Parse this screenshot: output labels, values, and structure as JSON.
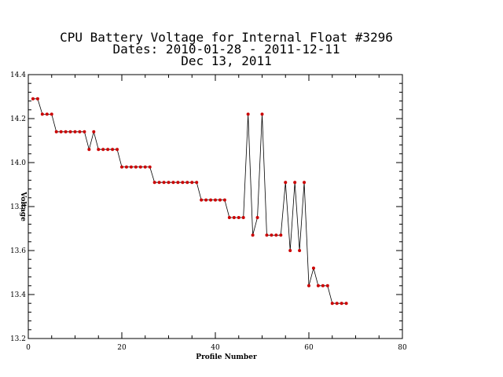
{
  "chart_data": {
    "type": "line",
    "title_lines": [
      "CPU Battery Voltage for Internal Float #3296",
      "Dates:  2010-01-28 -  2011-12-11",
      "Dec 13, 2011"
    ],
    "xlabel": "Profile Number",
    "ylabel": "Voltage",
    "xlim": [
      0,
      80
    ],
    "ylim": [
      13.2,
      14.4
    ],
    "x_ticks": [
      0,
      20,
      40,
      60,
      80
    ],
    "y_ticks": [
      13.2,
      13.4,
      13.6,
      13.8,
      14.0,
      14.2,
      14.4
    ],
    "x_tick_labels": [
      "0",
      "20",
      "40",
      "60",
      "80"
    ],
    "y_tick_labels": [
      "13.2",
      "13.4",
      "13.6",
      "13.8",
      "14.0",
      "14.2",
      "14.4"
    ],
    "grid": false,
    "line_color": "#000000",
    "marker_color": "#cc0000",
    "series": [
      {
        "x": [
          1,
          2,
          3,
          4,
          5,
          6,
          7,
          8,
          9,
          10,
          11,
          12,
          13,
          14,
          15,
          16,
          17,
          18,
          19,
          20,
          21,
          22,
          23,
          24,
          25,
          26,
          27,
          28,
          29,
          30,
          31,
          32,
          33,
          34,
          35,
          36,
          37,
          38,
          39,
          40,
          41,
          42,
          43,
          44,
          45,
          46,
          47,
          48,
          49,
          50,
          51,
          52,
          53,
          54,
          55,
          56,
          57,
          58,
          59,
          60,
          61,
          62,
          63,
          64,
          65,
          66,
          67,
          68
        ],
        "y": [
          14.29,
          14.29,
          14.22,
          14.22,
          14.22,
          14.14,
          14.14,
          14.14,
          14.14,
          14.14,
          14.14,
          14.14,
          14.06,
          14.14,
          14.06,
          14.06,
          14.06,
          14.06,
          14.06,
          13.98,
          13.98,
          13.98,
          13.98,
          13.98,
          13.98,
          13.98,
          13.91,
          13.91,
          13.91,
          13.91,
          13.91,
          13.91,
          13.91,
          13.91,
          13.91,
          13.91,
          13.83,
          13.83,
          13.83,
          13.83,
          13.83,
          13.83,
          13.75,
          13.75,
          13.75,
          13.75,
          14.22,
          13.67,
          13.75,
          14.22,
          13.67,
          13.67,
          13.67,
          13.67,
          13.91,
          13.6,
          13.91,
          13.6,
          13.91,
          13.44,
          13.52,
          13.44,
          13.44,
          13.44,
          13.36,
          13.36,
          13.36,
          13.36
        ]
      }
    ]
  }
}
